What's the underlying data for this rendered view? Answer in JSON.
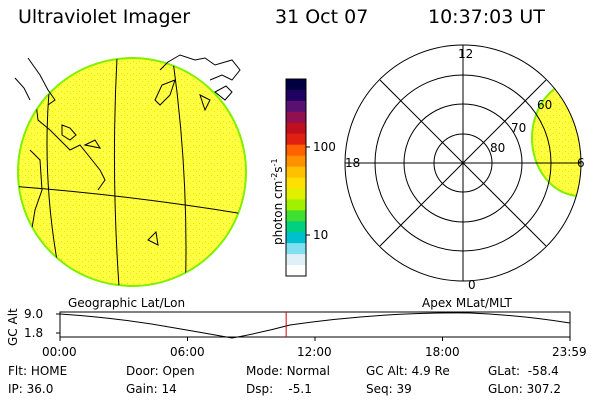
{
  "header": {
    "title": "Ultraviolet Imager",
    "date": "31 Oct 07",
    "time": "10:37:03 UT"
  },
  "colorbar": {
    "unit_label": "photon cm",
    "unit_exp1": "-2",
    "unit_s": "s",
    "unit_exp2": "-1",
    "ticks": [
      {
        "label": "100",
        "value": 100
      },
      {
        "label": "10",
        "value": 10
      }
    ],
    "colors": [
      "#000040",
      "#200060",
      "#5a1070",
      "#901050",
      "#c01020",
      "#e02010",
      "#ff6000",
      "#ff9000",
      "#ffc000",
      "#ffe000",
      "#e0f000",
      "#a0f000",
      "#40e030",
      "#00d080",
      "#00c0d0",
      "#80e0f0",
      "#e0f0f8",
      "#ffffff"
    ]
  },
  "left_panel": {
    "label": "Geographic Lat/Lon",
    "fill_color": "#ffff40",
    "limb_color": "#80f000"
  },
  "right_panel": {
    "label": "Apex MLat/MLT",
    "mlt_labels": [
      {
        "text": "12",
        "pos": "top"
      },
      {
        "text": "18",
        "pos": "left"
      },
      {
        "text": "6",
        "pos": "right"
      },
      {
        "text": "0",
        "pos": "bottom"
      }
    ],
    "lat_labels": [
      "60",
      "70",
      "80"
    ]
  },
  "orbit_plot": {
    "ylabel": "GC Alt",
    "yticks": [
      "9.0",
      "1.8"
    ],
    "xticks": [
      "00:00",
      "06:00",
      "12:00",
      "18:00",
      "23:59"
    ],
    "current_time_fraction": 0.4434,
    "marker_color": "#d00000"
  },
  "info": {
    "flt_label": "Flt:",
    "flt_value": "HOME",
    "door_label": "Door:",
    "door_value": "Open",
    "mode_label": "Mode:",
    "mode_value": "Normal",
    "gcalt_label": "GC Alt:",
    "gcalt_value": "4.9 Re",
    "glat_label": "GLat:",
    "glat_value": "-58.4",
    "ip_label": "IP:",
    "ip_value": "36.0",
    "gain_label": "Gain:",
    "gain_value": "14",
    "dsp_label": "Dsp:",
    "dsp_value": "-5.1",
    "seq_label": "Seq:",
    "seq_value": "39",
    "glon_label": "GLon:",
    "glon_value": "307.2"
  }
}
